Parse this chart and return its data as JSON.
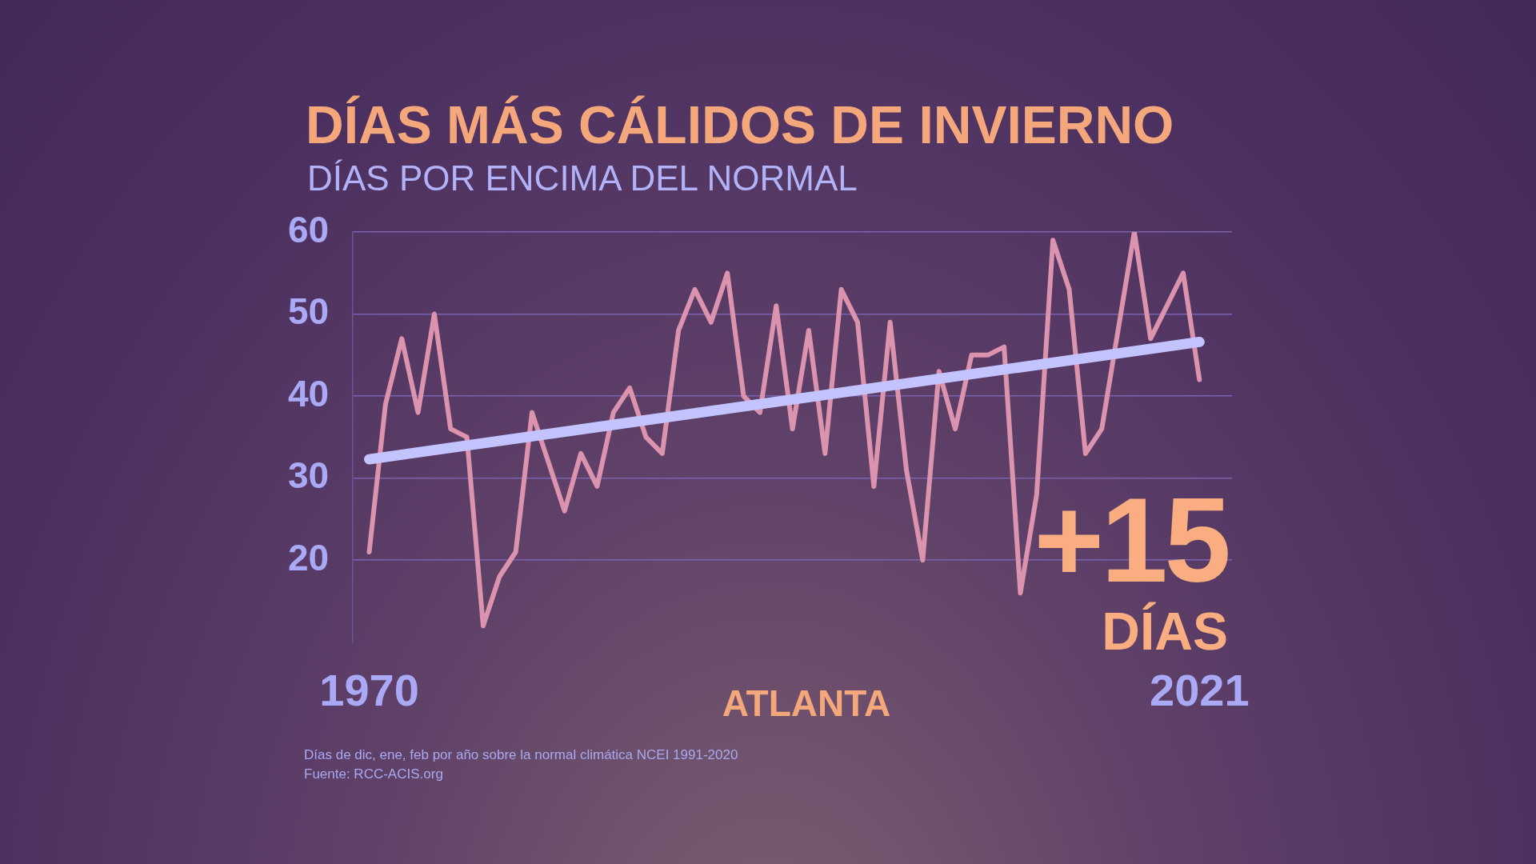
{
  "chart_data": {
    "type": "line",
    "title": "DÍAS MÁS CÁLIDOS DE INVIERNO",
    "subtitle": "DÍAS POR ENCIMA DEL NORMAL",
    "xlabel": "ATLANTA",
    "x": [
      1970,
      1971,
      1972,
      1973,
      1974,
      1975,
      1976,
      1977,
      1978,
      1979,
      1980,
      1981,
      1982,
      1983,
      1984,
      1985,
      1986,
      1987,
      1988,
      1989,
      1990,
      1991,
      1992,
      1993,
      1994,
      1995,
      1996,
      1997,
      1998,
      1999,
      2000,
      2001,
      2002,
      2003,
      2004,
      2005,
      2006,
      2007,
      2008,
      2009,
      2010,
      2011,
      2012,
      2013,
      2014,
      2015,
      2016,
      2017,
      2018,
      2019,
      2020,
      2021
    ],
    "series": [
      {
        "color": "#dc93ae",
        "values": [
          21,
          39,
          47,
          38,
          50,
          36,
          35,
          12,
          18,
          21,
          38,
          32,
          26,
          33,
          29,
          38,
          41,
          35,
          33,
          48,
          53,
          49,
          55,
          40,
          38,
          51,
          36,
          48,
          33,
          53,
          49,
          29,
          49,
          31,
          20,
          43,
          36,
          45,
          45,
          46,
          16,
          28,
          59,
          53,
          33,
          36,
          48,
          60,
          47,
          51,
          55,
          42
        ]
      },
      {
        "type": "line",
        "color": "#c3c3ff",
        "x": [
          1970,
          2021
        ],
        "values": [
          32.3,
          46.6
        ]
      }
    ],
    "xlim": [
      1969,
      2023
    ],
    "xticks": [
      1970,
      2021
    ],
    "ylim": [
      10,
      60
    ],
    "yticks": [
      20,
      30,
      40,
      50,
      60
    ],
    "grid": "y",
    "legend": false,
    "marker": "none",
    "line_style": "solid",
    "annotations": [
      "+15 DÍAS",
      "Días de dic, ene, feb por año sobre la normal climática NCEI 1991-2020",
      "Fuente: RCC-ACIS.org"
    ]
  }
}
